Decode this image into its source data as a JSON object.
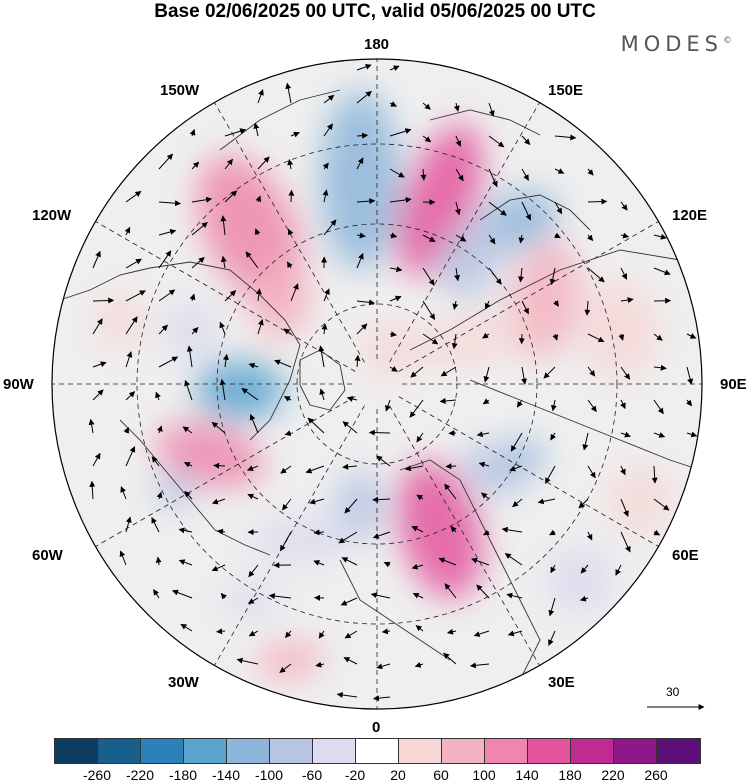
{
  "title": "Base 02/06/2025 00 UTC, valid 05/06/2025 00 UTC",
  "brand": "MODES",
  "brand_mark": "©",
  "longitude_labels": {
    "top": "180",
    "bottom": "0",
    "left": "90W",
    "right": "90E",
    "upper_left_1": "150W",
    "upper_left_2": "120W",
    "upper_right_1": "150E",
    "upper_right_2": "120E",
    "lower_left_1": "60W",
    "lower_left_2": "30W",
    "lower_right_1": "60E",
    "lower_right_2": "30E"
  },
  "vector_scale_label": "30",
  "colorbar": {
    "colors": [
      "#0b3d5e",
      "#185f8e",
      "#2b82b8",
      "#5aa3cf",
      "#8db6da",
      "#b7c4e3",
      "#dcdcee",
      "#ffffff",
      "#f6d8d8",
      "#f4b3c0",
      "#ef86ad",
      "#e4559e",
      "#c32a91",
      "#8c1889",
      "#5a1077"
    ],
    "tick_labels": [
      "-260",
      "-220",
      "-180",
      "-140",
      "-100",
      "-60",
      "-20",
      "20",
      "60",
      "100",
      "140",
      "180",
      "220",
      "260"
    ]
  }
}
